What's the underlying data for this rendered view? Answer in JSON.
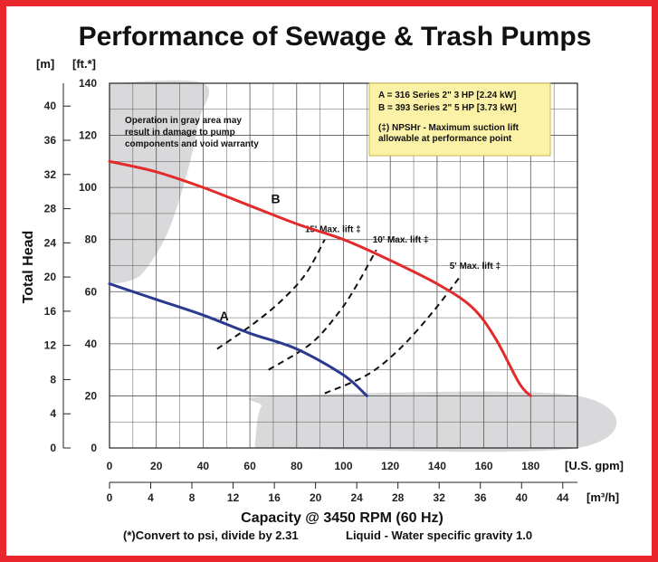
{
  "title": "Performance of Sewage & Trash Pumps",
  "colors": {
    "border": "#e8262b",
    "series_a": "#2b3a8f",
    "series_b": "#e32b2b",
    "gray_area": "#d9d9db",
    "legend_bg": "#fbf2a8",
    "grid": "#555555"
  },
  "notes": {
    "gray_warning": [
      "Operation in gray area may",
      "result in damage to pump",
      "components and void warranty"
    ],
    "legend_lines": [
      "A = 316 Series 2\" 3 HP [2.24 kW]",
      "B = 393 Series 2\" 5 HP [3.73 kW]"
    ],
    "npshr_lines": [
      "(‡) NPSHr - Maximum suction lift",
      "allowable at performance point"
    ]
  },
  "footer": {
    "capacity": "Capacity @ 3450 RPM (60 Hz)",
    "convert": "(*)Convert to psi, divide by 2.31",
    "liquid": "Liquid - Water specific gravity 1.0"
  },
  "chart_data": {
    "type": "line",
    "xlabel": "Capacity @ 3450 RPM (60 Hz)",
    "ylabel": "Total Head",
    "x_unit_primary": "[U.S. gpm]",
    "x_unit_secondary": "[m³/h]",
    "y_unit_primary": "[ft.*]",
    "y_unit_secondary": "[m]",
    "xlim": [
      0,
      200
    ],
    "ylim": [
      0,
      140
    ],
    "x_ticks_gpm": [
      0,
      20,
      40,
      60,
      80,
      100,
      120,
      140,
      160,
      180
    ],
    "x_ticks_m3h": [
      0,
      4,
      8,
      12,
      16,
      20,
      24,
      28,
      32,
      36,
      40,
      44
    ],
    "y_ticks_ft": [
      0,
      20,
      40,
      60,
      80,
      100,
      120,
      140
    ],
    "y_ticks_m": [
      0,
      4,
      8,
      12,
      16,
      20,
      24,
      28,
      32,
      36,
      40
    ],
    "grid": true,
    "series": [
      {
        "name": "A",
        "color": "#2b3a8f",
        "points": [
          [
            0,
            63
          ],
          [
            20,
            57
          ],
          [
            40,
            51
          ],
          [
            60,
            44
          ],
          [
            80,
            38
          ],
          [
            100,
            28
          ],
          [
            110,
            20
          ]
        ]
      },
      {
        "name": "B",
        "color": "#e32b2b",
        "points": [
          [
            0,
            110
          ],
          [
            20,
            106
          ],
          [
            40,
            100
          ],
          [
            60,
            93
          ],
          [
            80,
            86
          ],
          [
            100,
            80
          ],
          [
            120,
            72
          ],
          [
            140,
            63
          ],
          [
            155,
            54
          ],
          [
            165,
            42
          ],
          [
            175,
            25
          ],
          [
            180,
            20
          ]
        ]
      }
    ],
    "lift_lines": [
      {
        "label": "15' Max. lift ‡",
        "points": [
          [
            46,
            38
          ],
          [
            62,
            48
          ],
          [
            74,
            57
          ],
          [
            84,
            67
          ],
          [
            92,
            80
          ]
        ]
      },
      {
        "label": "10' Max. lift ‡",
        "points": [
          [
            68,
            30
          ],
          [
            86,
            40
          ],
          [
            98,
            52
          ],
          [
            106,
            63
          ],
          [
            114,
            76
          ]
        ]
      },
      {
        "label": "5' Max. lift ‡",
        "points": [
          [
            92,
            21
          ],
          [
            110,
            28
          ],
          [
            124,
            38
          ],
          [
            138,
            52
          ],
          [
            150,
            66
          ]
        ]
      }
    ],
    "gray_regions": [
      {
        "name": "low-flow region",
        "points": [
          [
            0,
            140
          ],
          [
            40,
            140
          ],
          [
            38,
            125
          ],
          [
            33,
            105
          ],
          [
            25,
            83
          ],
          [
            15,
            68
          ],
          [
            8,
            64
          ],
          [
            0,
            63
          ]
        ]
      },
      {
        "name": "low-head region",
        "points": [
          [
            62,
            0
          ],
          [
            200,
            0
          ],
          [
            200,
            20
          ],
          [
            71,
            20
          ],
          [
            65,
            16
          ],
          [
            63,
            10
          ]
        ]
      }
    ],
    "curve_labels": [
      {
        "text": "A",
        "at": [
          49,
          49
        ]
      },
      {
        "text": "B",
        "at": [
          71,
          94
        ]
      }
    ]
  }
}
